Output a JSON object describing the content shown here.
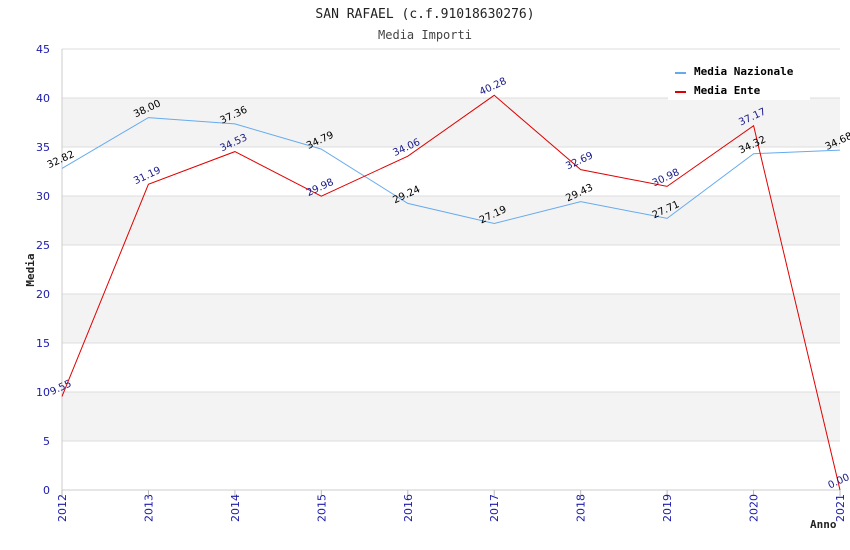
{
  "chart_data": {
    "type": "line",
    "title": "SAN RAFAEL (c.f.91018630276)",
    "subtitle": "Media Importi",
    "xlabel": "Anno",
    "ylabel": "Media",
    "ylim": [
      0,
      45
    ],
    "yticks": [
      "0",
      "5",
      "10",
      "15",
      "20",
      "25",
      "30",
      "35",
      "40",
      "45"
    ],
    "x": [
      "2012",
      "2013",
      "2014",
      "2015",
      "2016",
      "2017",
      "2018",
      "2019",
      "2020",
      "2021"
    ],
    "grid": true,
    "legend_position": "top-right",
    "series": [
      {
        "name": "Media Nazionale",
        "color": "#66aaee",
        "values": [
          32.82,
          38.0,
          37.36,
          34.79,
          29.24,
          27.19,
          29.43,
          27.71,
          34.32,
          34.68
        ],
        "labels": [
          "32.82",
          "38.00",
          "37.36",
          "34.79",
          "29.24",
          "27.19",
          "29.43",
          "27.71",
          "34.32",
          "34.68"
        ]
      },
      {
        "name": "Media Ente",
        "color": "#e00000",
        "values": [
          9.55,
          31.19,
          34.53,
          29.98,
          34.06,
          40.28,
          32.69,
          30.98,
          37.17,
          0.0
        ],
        "labels": [
          "9.55",
          "31.19",
          "34.53",
          "29.98",
          "34.06",
          "40.28",
          "32.69",
          "30.98",
          "37.17",
          "0.00"
        ]
      }
    ]
  }
}
